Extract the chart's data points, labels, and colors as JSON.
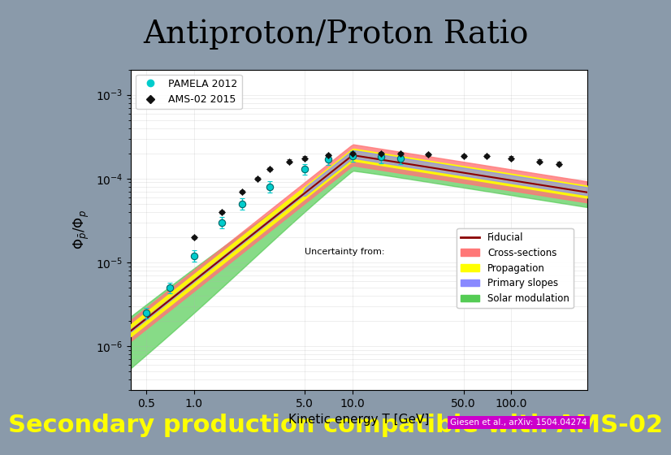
{
  "title": "Antiproton/Proton Ratio",
  "title_fontsize": 28,
  "title_bg": "#b8d4e8",
  "subtitle": "Secondary production compatible with AMS-02",
  "subtitle_fontsize": 22,
  "subtitle_color": "#ffff00",
  "subtitle_bg": "#cc0000",
  "citation": "Giesen et al., arXiv: 1504.04274",
  "citation_bg": "#cc00cc",
  "citation_color": "#ffffff",
  "xlabel": "Kinetic energy T [GeV]",
  "ylabel": "Φ̅_{̅p̅} / Φ_p",
  "xlim_log": [
    0.4,
    300
  ],
  "ylim_log": [
    3e-07,
    0.002
  ],
  "bg_color": "#8899aa",
  "plot_bg": "#ffffff",
  "fiducial_color": "#8b0000",
  "cross_section_color": "#ff7777",
  "propagation_color": "#ffff00",
  "primary_slopes_color": "#8888ff",
  "solar_mod_color": "#55cc55",
  "pamela_color": "#00cccc",
  "ams02_color": "#111111",
  "legend_items": [
    "PAMELA 2012",
    "AMS-02 2015"
  ],
  "band_labels": [
    "Fiducial",
    "Cross-sections",
    "Propagation",
    "Primary slopes",
    "Solar modulation"
  ]
}
